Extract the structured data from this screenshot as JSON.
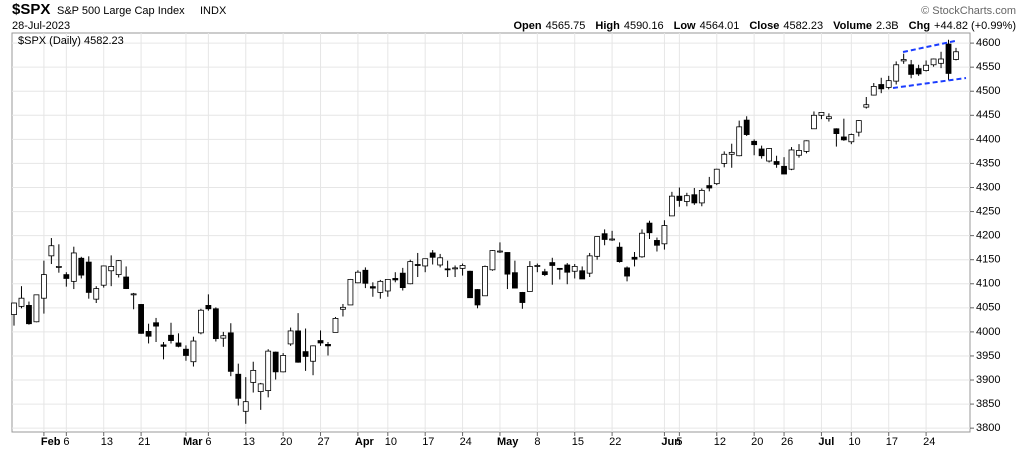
{
  "chart_data": {
    "type": "candlestick",
    "symbol": "$SPX",
    "name": "S&P 500 Large Cap Index",
    "exchange": "INDX",
    "date": "28-Jul-2023",
    "summary": [
      {
        "label": "Open",
        "value": "4565.75"
      },
      {
        "label": "High",
        "value": "4590.16"
      },
      {
        "label": "Low",
        "value": "4564.01"
      },
      {
        "label": "Close",
        "value": "4582.23"
      },
      {
        "label": "Volume",
        "value": "2.3B"
      },
      {
        "label": "Chg",
        "value": "+44.82 (+0.99%)"
      }
    ],
    "credit": "© StockCharts.com",
    "legend": "$SPX (Daily) 4582.23",
    "categories": [
      null,
      null,
      null,
      null,
      "Feb",
      null,
      null,
      "6",
      null,
      null,
      null,
      null,
      "13",
      null,
      null,
      null,
      null,
      "21",
      null,
      null,
      null,
      null,
      null,
      "Mar",
      null,
      null,
      "6",
      null,
      null,
      null,
      null,
      "13",
      null,
      null,
      null,
      null,
      "20",
      null,
      null,
      null,
      null,
      "27",
      null,
      null,
      null,
      null,
      "Apr",
      null,
      null,
      null,
      "10",
      null,
      null,
      null,
      null,
      "17",
      null,
      null,
      null,
      null,
      "24",
      null,
      null,
      null,
      null,
      "May",
      null,
      null,
      null,
      null,
      "8",
      null,
      null,
      null,
      null,
      "15",
      null,
      null,
      null,
      null,
      "22",
      null,
      null,
      null,
      null,
      null,
      null,
      "Jun",
      null,
      "5",
      null,
      null,
      null,
      null,
      "12",
      null,
      null,
      null,
      null,
      "20",
      null,
      null,
      null,
      "26",
      null,
      null,
      null,
      null,
      "Jul",
      null,
      null,
      null,
      "10",
      null,
      null,
      null,
      null,
      "17",
      null,
      null,
      null,
      null,
      "24",
      null,
      null,
      null,
      null
    ],
    "open": [
      4036,
      4053,
      4055,
      4021,
      4070,
      4158,
      4136,
      4119,
      4105,
      4153,
      4145,
      4068,
      4097,
      4127,
      4119,
      4114,
      4077,
      4057,
      4001,
      4019,
      3973,
      3993,
      3977,
      3964,
      3938,
      3998,
      4055,
      4048,
      3987,
      3998,
      3912,
      3835,
      3895,
      3876,
      3878,
      3958,
      3917,
      3975,
      4002,
      3959,
      3939,
      3982,
      3974,
      3999,
      4047,
      4056,
      4102,
      4128,
      4094,
      4082,
      4085,
      4111,
      4122,
      4100,
      4140,
      4137,
      4164,
      4139,
      4131,
      4132,
      4132,
      4126,
      4088,
      4075,
      4129,
      4166,
      4165,
      4123,
      4082,
      4084,
      4137,
      4125,
      4144,
      4132,
      4139,
      4126,
      4127,
      4122,
      4157,
      4204,
      4191,
      4176,
      4133,
      4155,
      4156,
      4226,
      4190,
      4183,
      4241,
      4282,
      4271,
      4285,
      4268,
      4304,
      4308,
      4350,
      4369,
      4366,
      4440,
      4396,
      4380,
      4355,
      4354,
      4344,
      4338,
      4367,
      4375,
      4422,
      4450,
      4443,
      4422,
      4405,
      4395,
      4415,
      4467,
      4492,
      4514,
      4508,
      4521,
      4563,
      4555,
      4547,
      4543,
      4555,
      4558,
      4598,
      4566
    ],
    "high": [
      4061,
      4095,
      4063,
      4077,
      4148,
      4195,
      4182,
      4124,
      4177,
      4156,
      4157,
      4095,
      4138,
      4159,
      4149,
      4136,
      4081,
      4058,
      4017,
      4029,
      3979,
      4019,
      3997,
      3972,
      3990,
      4048,
      4078,
      4051,
      4000,
      4018,
      3934,
      3906,
      3938,
      3894,
      3964,
      3959,
      3956,
      4009,
      4039,
      4007,
      3972,
      4003,
      3979,
      4031,
      4058,
      4110,
      4128,
      4134,
      4103,
      4108,
      4109,
      4124,
      4133,
      4150,
      4164,
      4152,
      4170,
      4162,
      4148,
      4138,
      4142,
      4127,
      4089,
      4138,
      4170,
      4186,
      4165,
      4148,
      4083,
      4147,
      4142,
      4131,
      4154,
      4132,
      4143,
      4141,
      4136,
      4164,
      4198,
      4213,
      4210,
      4186,
      4136,
      4166,
      4213,
      4231,
      4196,
      4232,
      4291,
      4300,
      4289,
      4299,
      4298,
      4322,
      4339,
      4375,
      4391,
      4439,
      4448,
      4400,
      4387,
      4382,
      4366,
      4363,
      4384,
      4390,
      4398,
      4458,
      4456,
      4454,
      4423,
      4443,
      4412,
      4440,
      4488,
      4517,
      4528,
      4532,
      4562,
      4578,
      4565,
      4555,
      4564,
      4568,
      4582,
      4607,
      4590
    ],
    "low": [
      4013,
      4049,
      4015,
      4020,
      4038,
      4141,
      4123,
      4094,
      4089,
      4111,
      4069,
      4060,
      4092,
      4095,
      4113,
      4089,
      4047,
      3996,
      3976,
      3979,
      3943,
      3976,
      3968,
      3940,
      3928,
      3995,
      4044,
      3980,
      3969,
      3908,
      3847,
      3809,
      3874,
      3838,
      3864,
      3901,
      3916,
      3971,
      3936,
      3919,
      3910,
      3971,
      3951,
      3999,
      4032,
      4056,
      4101,
      4091,
      4073,
      4069,
      4073,
      4103,
      4086,
      4099,
      4114,
      4124,
      4140,
      4134,
      4114,
      4114,
      4117,
      4072,
      4049,
      4075,
      4127,
      4164,
      4089,
      4091,
      4048,
      4084,
      4124,
      4116,
      4098,
      4109,
      4099,
      4111,
      4110,
      4114,
      4150,
      4180,
      4189,
      4144,
      4105,
      4136,
      4154,
      4193,
      4167,
      4171,
      4241,
      4260,
      4261,
      4264,
      4261,
      4292,
      4305,
      4342,
      4341,
      4365,
      4407,
      4367,
      4360,
      4352,
      4341,
      4328,
      4336,
      4362,
      4371,
      4422,
      4442,
      4437,
      4385,
      4397,
      4390,
      4406,
      4464,
      4491,
      4496,
      4504,
      4514,
      4557,
      4527,
      4532,
      4541,
      4551,
      4548,
      4523,
      4564
    ],
    "close": [
      4060,
      4070,
      4017,
      4077,
      4119,
      4179,
      4136,
      4111,
      4164,
      4118,
      4082,
      4090,
      4137,
      4136,
      4148,
      4090,
      4079,
      3997,
      3991,
      4012,
      3970,
      3982,
      3970,
      3951,
      3981,
      4045,
      4048,
      3986,
      3992,
      3918,
      3862,
      3855,
      3920,
      3892,
      3960,
      3917,
      3951,
      4002,
      3937,
      3949,
      3971,
      3977,
      3971,
      4028,
      4051,
      4109,
      4124,
      4101,
      4091,
      4105,
      4109,
      4108,
      4092,
      4146,
      4138,
      4152,
      4155,
      4154,
      4130,
      4133,
      4138,
      4071,
      4056,
      4136,
      4169,
      4168,
      4120,
      4091,
      4061,
      4136,
      4138,
      4119,
      4138,
      4131,
      4124,
      4136,
      4110,
      4158,
      4198,
      4192,
      4193,
      4146,
      4116,
      4151,
      4205,
      4206,
      4180,
      4221,
      4282,
      4273,
      4283,
      4268,
      4294,
      4299,
      4338,
      4369,
      4373,
      4426,
      4410,
      4389,
      4366,
      4381,
      4348,
      4328,
      4378,
      4377,
      4397,
      4450,
      4456,
      4447,
      4412,
      4399,
      4410,
      4439,
      4472,
      4510,
      4505,
      4522,
      4555,
      4566,
      4535,
      4536,
      4554,
      4567,
      4567,
      4537,
      4582
    ],
    "up_color": "#ffffff",
    "down_color": "#000000",
    "wick_color": "#000000",
    "ylim": [
      3792,
      4621
    ],
    "yticks": [
      3800,
      3850,
      3900,
      3950,
      4000,
      4050,
      4100,
      4150,
      4200,
      4250,
      4300,
      4350,
      4400,
      4450,
      4500,
      4550,
      4600
    ],
    "grid": true
  }
}
